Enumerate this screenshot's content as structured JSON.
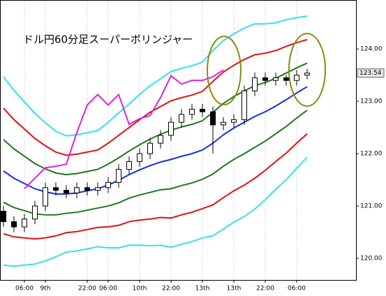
{
  "chart_data": {
    "type": "candlestick",
    "title": "ドル円60分足スーパーボリンジャー",
    "categories": [
      null,
      null,
      "06:00",
      null,
      "9th",
      null,
      null,
      null,
      "22:00",
      null,
      "06:00",
      null,
      null,
      "10th",
      null,
      null,
      "22:00",
      null,
      null,
      "13th",
      null,
      null,
      "13th",
      null,
      null,
      "22:00",
      null,
      null,
      "06:00",
      null
    ],
    "open": [
      120.9,
      120.7,
      120.6,
      120.75,
      121.0,
      121.35,
      121.3,
      121.25,
      121.35,
      121.3,
      121.35,
      121.45,
      121.7,
      121.85,
      122.0,
      122.2,
      122.35,
      122.6,
      122.75,
      122.85,
      122.8,
      122.55,
      122.6,
      122.65,
      123.2,
      123.45,
      123.4,
      123.45,
      123.4,
      123.5
    ],
    "high": [
      121.0,
      120.8,
      120.85,
      121.1,
      121.45,
      121.45,
      121.4,
      121.45,
      121.45,
      121.45,
      121.55,
      121.8,
      121.95,
      122.1,
      122.3,
      122.45,
      122.7,
      122.85,
      122.95,
      122.95,
      122.9,
      122.7,
      122.75,
      123.3,
      123.55,
      123.55,
      123.55,
      123.5,
      123.6,
      123.62
    ],
    "low": [
      120.6,
      120.5,
      120.5,
      120.65,
      120.9,
      121.2,
      121.15,
      121.15,
      121.2,
      121.2,
      121.25,
      121.35,
      121.6,
      121.75,
      121.9,
      122.1,
      122.25,
      122.5,
      122.65,
      122.7,
      122.0,
      122.45,
      122.5,
      122.55,
      123.1,
      123.3,
      123.3,
      123.3,
      123.3,
      123.42
    ],
    "close": [
      120.7,
      120.6,
      120.75,
      121.0,
      121.35,
      121.3,
      121.25,
      121.35,
      121.3,
      121.35,
      121.45,
      121.7,
      121.85,
      122.0,
      122.2,
      122.35,
      122.6,
      122.75,
      122.85,
      122.8,
      122.55,
      122.6,
      122.65,
      123.2,
      123.45,
      123.4,
      123.45,
      123.4,
      123.5,
      123.54
    ],
    "series": [
      {
        "color": "#33e0f0",
        "values": [
          123.47,
          123.21,
          122.99,
          122.77,
          122.59,
          122.43,
          122.34,
          122.36,
          122.4,
          122.44,
          122.6,
          122.78,
          122.95,
          123.13,
          123.3,
          123.43,
          123.57,
          123.63,
          123.68,
          123.75,
          123.97,
          124.16,
          124.29,
          124.4,
          124.48,
          124.48,
          124.5,
          124.56,
          124.6,
          124.63
        ]
      },
      {
        "color": "#e01010",
        "values": [
          122.87,
          122.65,
          122.47,
          122.29,
          122.15,
          122.03,
          121.97,
          121.99,
          122.03,
          122.07,
          122.2,
          122.35,
          122.5,
          122.65,
          122.79,
          122.9,
          123.01,
          123.07,
          123.12,
          123.19,
          123.38,
          123.56,
          123.69,
          123.8,
          123.89,
          123.92,
          123.97,
          124.05,
          124.12,
          124.18
        ]
      },
      {
        "color": "#1a7a1a",
        "values": [
          122.27,
          122.09,
          121.95,
          121.81,
          121.71,
          121.63,
          121.6,
          121.62,
          121.66,
          121.7,
          121.8,
          121.92,
          122.05,
          122.17,
          122.28,
          122.37,
          122.45,
          122.51,
          122.56,
          122.63,
          122.79,
          122.96,
          123.09,
          123.2,
          123.3,
          123.36,
          123.44,
          123.54,
          123.64,
          123.73
        ]
      },
      {
        "color": "#1030e0",
        "values": [
          121.67,
          121.53,
          121.43,
          121.33,
          121.27,
          121.23,
          121.23,
          121.25,
          121.29,
          121.33,
          121.4,
          121.49,
          121.6,
          121.69,
          121.77,
          121.84,
          121.89,
          121.95,
          122.0,
          122.07,
          122.2,
          122.36,
          122.49,
          122.6,
          122.71,
          122.8,
          122.91,
          123.03,
          123.16,
          123.28
        ]
      },
      {
        "color": "#1a7a1a",
        "values": [
          121.07,
          120.97,
          120.91,
          120.85,
          120.83,
          120.83,
          120.86,
          120.88,
          120.92,
          120.96,
          121.0,
          121.06,
          121.15,
          121.21,
          121.26,
          121.31,
          121.33,
          121.39,
          121.44,
          121.51,
          121.61,
          121.76,
          121.89,
          122.0,
          122.12,
          122.24,
          122.38,
          122.52,
          122.68,
          122.83
        ]
      },
      {
        "color": "#e01010",
        "values": [
          120.47,
          120.41,
          120.39,
          120.37,
          120.39,
          120.43,
          120.49,
          120.51,
          120.55,
          120.59,
          120.6,
          120.63,
          120.7,
          120.73,
          120.75,
          120.78,
          120.77,
          120.83,
          120.88,
          120.95,
          121.02,
          121.16,
          121.29,
          121.4,
          121.53,
          121.68,
          121.85,
          122.01,
          122.2,
          122.38
        ]
      },
      {
        "color": "#33e0f0",
        "values": [
          119.87,
          119.85,
          119.87,
          119.89,
          119.95,
          120.03,
          120.12,
          120.14,
          120.18,
          120.22,
          120.2,
          120.2,
          120.25,
          120.25,
          120.24,
          120.25,
          120.21,
          120.27,
          120.32,
          120.39,
          120.43,
          120.56,
          120.69,
          120.8,
          120.94,
          121.12,
          121.32,
          121.5,
          121.72,
          121.93
        ]
      },
      {
        "color": "#e020e0",
        "values": [
          null,
          null,
          121.33,
          121.53,
          121.73,
          121.76,
          121.8,
          122.4,
          122.93,
          123.13,
          122.93,
          123.13,
          122.56,
          122.67,
          122.73,
          123.07,
          123.49,
          123.33,
          123.4,
          123.4,
          123.47,
          123.6,
          null,
          null,
          null,
          null,
          null,
          null,
          null,
          null
        ]
      }
    ],
    "candle_up_color": "#ffffff",
    "candle_down_color": "#000000",
    "ylim": [
      119.6,
      124.87
    ],
    "yticks": [
      {
        "value": 120,
        "label": "120.00"
      },
      {
        "value": 121,
        "label": "121.00"
      },
      {
        "value": 122,
        "label": "122.00"
      },
      {
        "value": 123,
        "label": "123.00"
      },
      {
        "value": 124,
        "label": "124.00"
      }
    ],
    "last_price": {
      "value": 123.54,
      "label": "123.54"
    },
    "grid": true
  }
}
